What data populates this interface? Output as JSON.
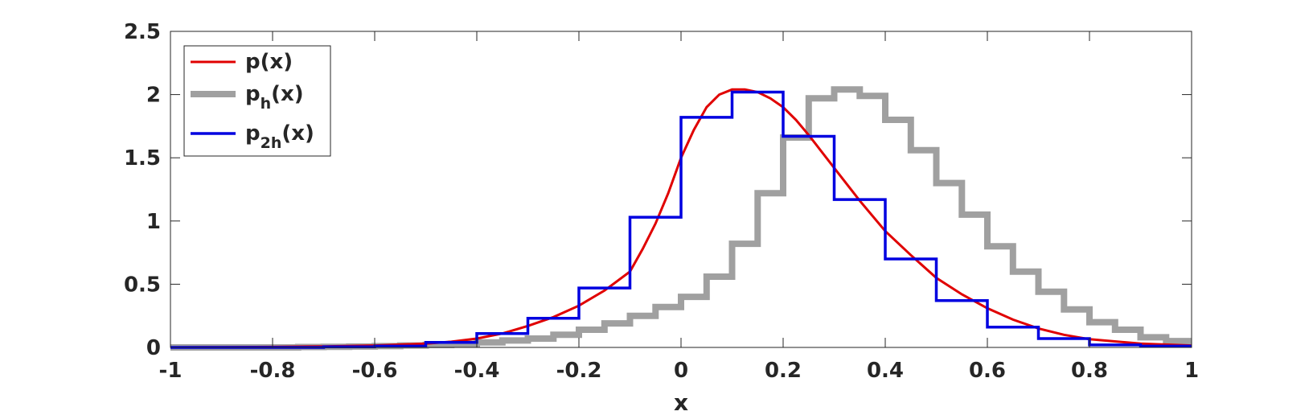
{
  "chart_data": {
    "type": "line",
    "title": "",
    "xlabel": "x",
    "ylabel": "",
    "xlim": [
      -1,
      1
    ],
    "ylim": [
      0,
      2.5
    ],
    "xticks": [
      -1,
      -0.8,
      -0.6,
      -0.4,
      -0.2,
      0,
      0.2,
      0.4,
      0.6,
      0.8,
      1
    ],
    "xtick_labels": [
      "-1",
      "-0.8",
      "-0.6",
      "-0.4",
      "-0.2",
      "0",
      "0.2",
      "0.4",
      "0.6",
      "0.8",
      "1"
    ],
    "yticks": [
      0,
      0.5,
      1,
      1.5,
      2,
      2.5
    ],
    "ytick_labels": [
      "0",
      "0.5",
      "1",
      "1.5",
      "2",
      "2.5"
    ],
    "grid": false,
    "legend": {
      "placement": "top-left",
      "entries": [
        {
          "main": "p(x)",
          "base": "p",
          "sub": "",
          "tail": "(x)"
        },
        {
          "main": "p_h(x)",
          "base": "p",
          "sub": "h",
          "tail": "(x)"
        },
        {
          "main": "p_2h(x)",
          "base": "p",
          "sub": "2h",
          "tail": "(x)"
        }
      ]
    },
    "series": [
      {
        "name": "p(x)",
        "kind": "line",
        "color": "#e00000",
        "x": [
          -1,
          -0.9,
          -0.8,
          -0.7,
          -0.6,
          -0.5,
          -0.45,
          -0.4,
          -0.35,
          -0.3,
          -0.25,
          -0.2,
          -0.15,
          -0.1,
          -0.075,
          -0.05,
          -0.025,
          0,
          0.025,
          0.05,
          0.075,
          0.1,
          0.125,
          0.15,
          0.175,
          0.2,
          0.225,
          0.25,
          0.3,
          0.35,
          0.4,
          0.45,
          0.5,
          0.55,
          0.6,
          0.65,
          0.7,
          0.75,
          0.8,
          0.9,
          1
        ],
        "values": [
          0.0,
          0.002,
          0.004,
          0.008,
          0.015,
          0.03,
          0.045,
          0.07,
          0.11,
          0.17,
          0.24,
          0.33,
          0.45,
          0.6,
          0.78,
          0.98,
          1.22,
          1.5,
          1.72,
          1.9,
          2.0,
          2.04,
          2.04,
          2.02,
          1.97,
          1.9,
          1.8,
          1.68,
          1.42,
          1.16,
          0.92,
          0.73,
          0.55,
          0.42,
          0.31,
          0.22,
          0.15,
          0.1,
          0.065,
          0.03,
          0.015
        ]
      },
      {
        "name": "p_h(x)",
        "kind": "step",
        "color": "#a0a0a0",
        "bin_width": 0.05,
        "edges_start": -1,
        "values": [
          0.0,
          0.0,
          0.0,
          0.0,
          0.0,
          0.003,
          0.005,
          0.007,
          0.01,
          0.015,
          0.02,
          0.028,
          0.04,
          0.055,
          0.07,
          0.1,
          0.14,
          0.19,
          0.25,
          0.32,
          0.4,
          0.56,
          0.82,
          1.22,
          1.66,
          1.97,
          2.04,
          1.99,
          1.8,
          1.56,
          1.3,
          1.05,
          0.8,
          0.6,
          0.44,
          0.3,
          0.2,
          0.14,
          0.08,
          0.05
        ]
      },
      {
        "name": "p_2h(x)",
        "kind": "step",
        "color": "#0000e0",
        "bin_width": 0.1,
        "edges_start": -1,
        "values": [
          0.0,
          0.0,
          0.0,
          0.005,
          0.01,
          0.04,
          0.11,
          0.23,
          0.47,
          1.03,
          1.82,
          2.02,
          1.67,
          1.17,
          0.7,
          0.37,
          0.16,
          0.07,
          0.02,
          0.01
        ]
      }
    ]
  }
}
